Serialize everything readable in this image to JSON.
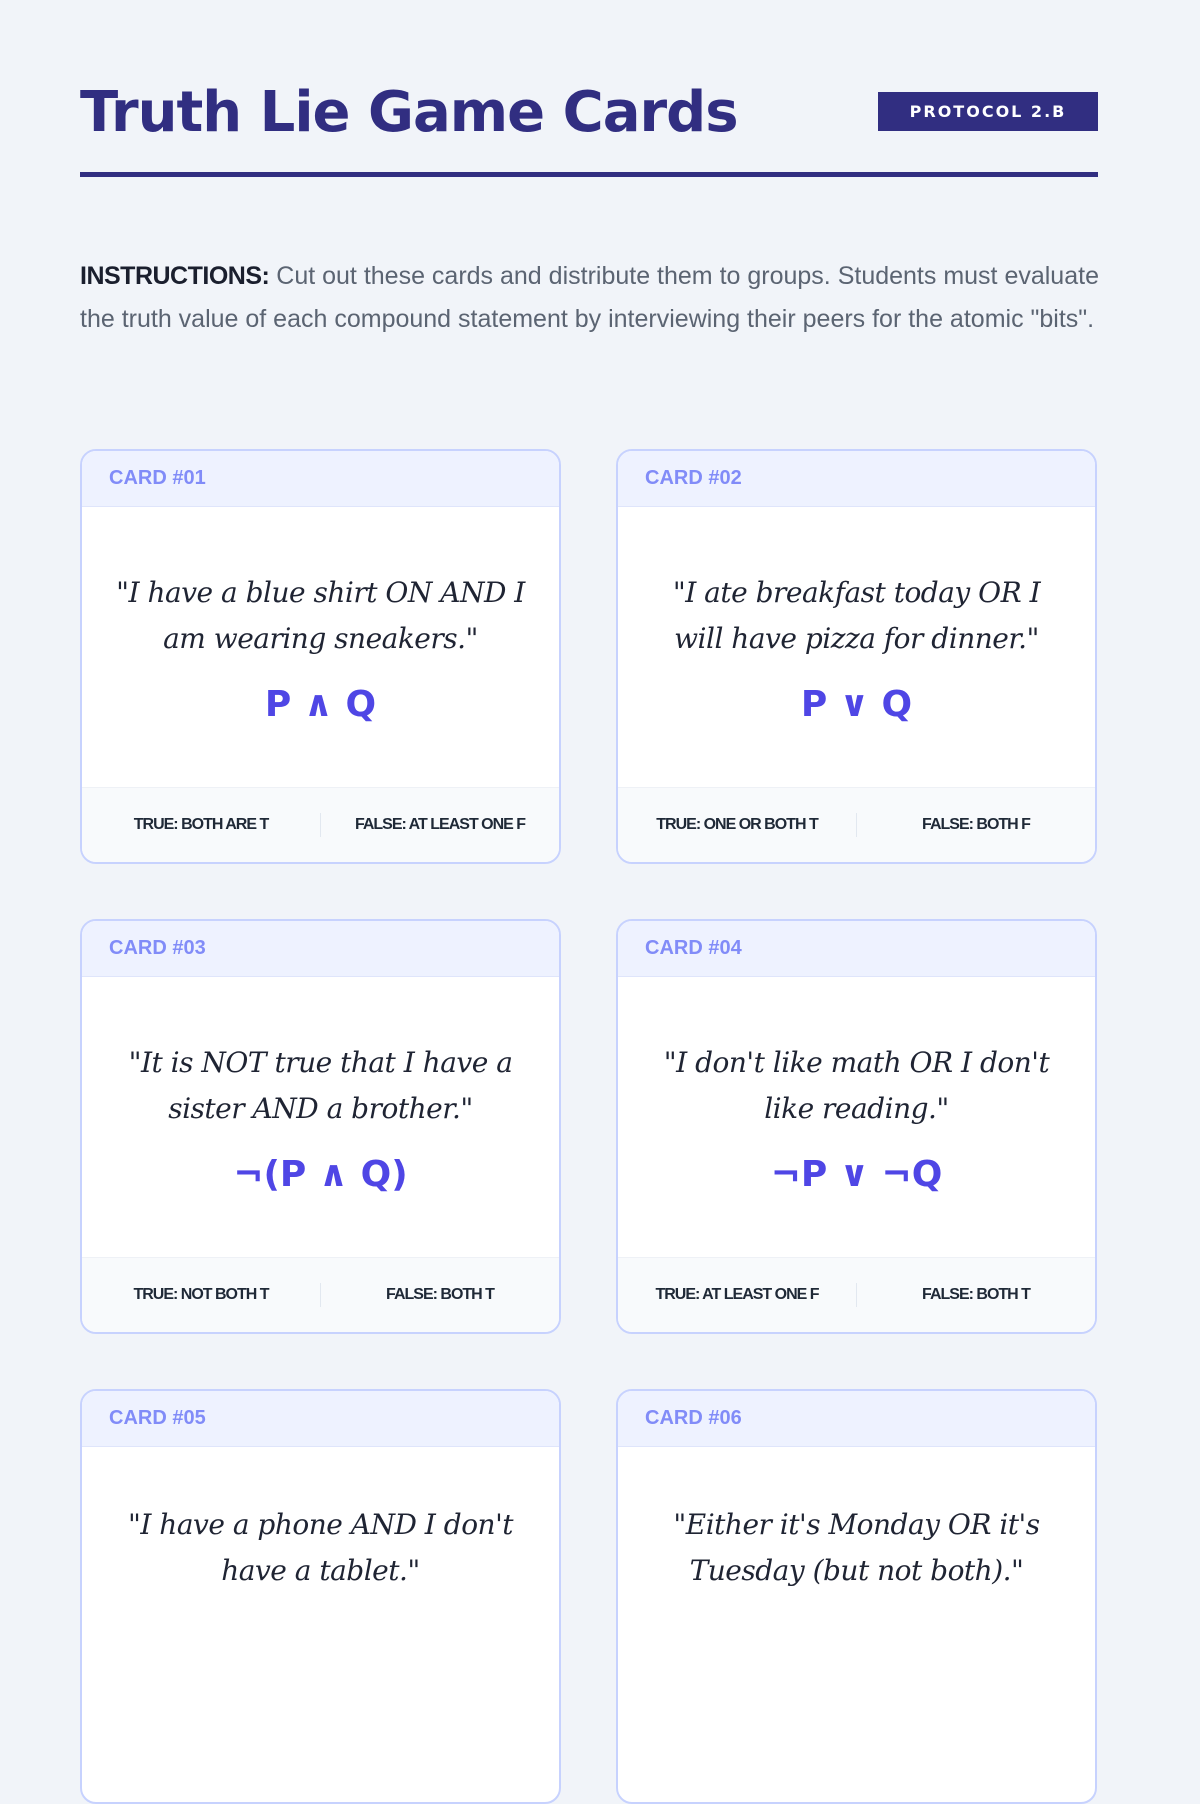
{
  "header": {
    "title": "Truth Lie Game Cards",
    "badge": "PROTOCOL 2.B"
  },
  "instructions": {
    "label": "INSTRUCTIONS:",
    "text": " Cut out these cards and distribute them to groups. Students must evaluate the truth value of each compound statement by interviewing their peers for the atomic \"bits\"."
  },
  "colors": {
    "primary": "#312e81",
    "accent": "#4f46e5",
    "card_label": "#818cf8",
    "card_border": "#c7d2fe"
  },
  "cards": [
    {
      "label": "CARD #01",
      "quote": "\"I have a blue shirt ON AND I am wearing sneakers.\"",
      "formula": "P ∧ Q",
      "true": "TRUE: BOTH ARE T",
      "false": "FALSE: AT LEAST ONE F"
    },
    {
      "label": "CARD #02",
      "quote": "\"I ate breakfast today OR I will have pizza for dinner.\"",
      "formula": "P ∨ Q",
      "true": "TRUE: ONE OR BOTH T",
      "false": "FALSE: BOTH F"
    },
    {
      "label": "CARD #03",
      "quote": "\"It is NOT true that I have a sister AND a brother.\"",
      "formula": "¬(P ∧ Q)",
      "true": "TRUE: NOT BOTH T",
      "false": "FALSE: BOTH T"
    },
    {
      "label": "CARD #04",
      "quote": "\"I don't like math OR I don't like reading.\"",
      "formula": "¬P ∨ ¬Q",
      "true": "TRUE: AT LEAST ONE F",
      "false": "FALSE: BOTH T"
    },
    {
      "label": "CARD #05",
      "quote": "\"I have a phone AND I don't have a tablet.\""
    },
    {
      "label": "CARD #06",
      "quote": "\"Either it's Monday OR it's Tuesday (but not both).\""
    }
  ]
}
